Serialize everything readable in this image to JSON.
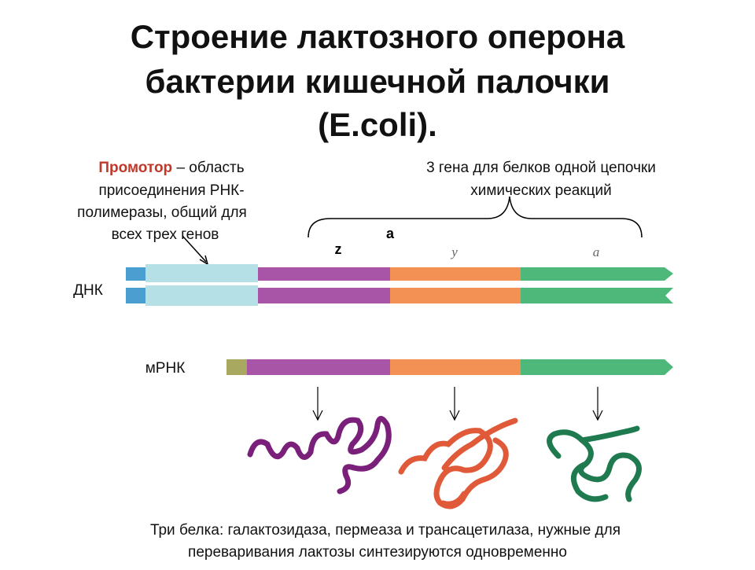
{
  "title": {
    "lines": [
      "Строение лактозного оперона",
      "бактерии кишечной палочки",
      "(E.coli)."
    ]
  },
  "promoter": {
    "term": "Промотор",
    "lines": [
      "– область",
      "присоединения РНК-",
      "полимеразы, общий для",
      "всех трех генов"
    ]
  },
  "genes_note": {
    "lines": [
      "3 гена для белков одной цепочки",
      "химических реакций"
    ]
  },
  "gene_labels": [
    "z",
    "y",
    "a"
  ],
  "overlay_label": "a",
  "dna_label": "ДНК",
  "mrna_label": "мРНК",
  "caption": {
    "lines": [
      "Три белка: галактозидаза, пермеаза и трансацетилаза, нужные для",
      "переваривания лактозы синтезируются одновременно"
    ]
  }
}
